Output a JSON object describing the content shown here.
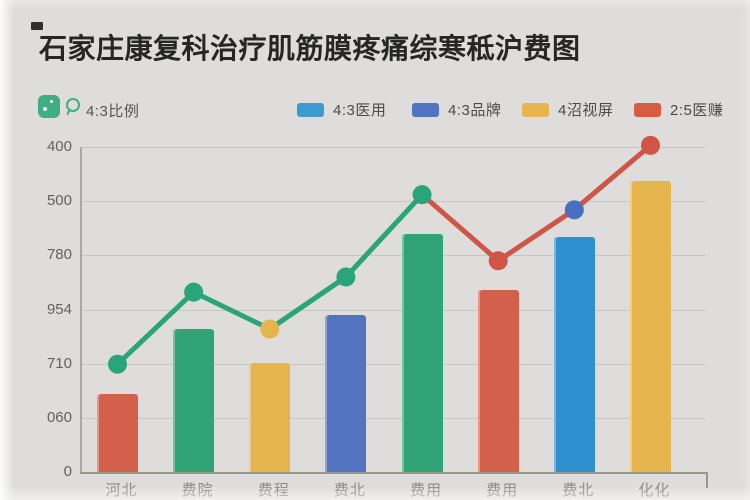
{
  "title": "石家庄康复科治疗肌筋膜疼痛综寒秪沪费图",
  "toolbar": {
    "app_icon_color": "#3fae85",
    "ratio_label": "4:3比例"
  },
  "legend": {
    "items": [
      {
        "label": "4:3医用",
        "color": "#3a9ad2"
      },
      {
        "label": "4:3品牌",
        "color": "#5273c3"
      },
      {
        "label": "4沼视屏",
        "color": "#e8b44e"
      },
      {
        "label": "2:5医赚",
        "color": "#d85b43"
      }
    ]
  },
  "chart_data": {
    "type": "bar",
    "title": "石家庄康复科治疗肌筋膜疼痛综寒秪沪费图",
    "categories": [
      "河北",
      "费院",
      "费程",
      "费北",
      "费用",
      "费用",
      "费北",
      "化化"
    ],
    "series": [
      {
        "name": "bars",
        "type": "bar",
        "values": [
          145,
          265,
          202,
          290,
          440,
          336,
          434,
          538
        ],
        "colors": [
          "#d3604b",
          "#31a477",
          "#e6b44c",
          "#5173c0",
          "#31a477",
          "#d3604b",
          "#2f90cf",
          "#e6b44c"
        ]
      },
      {
        "name": "line",
        "type": "line",
        "values": [
          199,
          332,
          264,
          360,
          512,
          390,
          484,
          603
        ],
        "point_colors": [
          "#2aa47a",
          "#2aa47a",
          "#e6b44c",
          "#2aa47a",
          "#2aa47a",
          "#d05546",
          "#4a6fc2",
          "#d05546"
        ],
        "segment_colors": [
          "#2aa47a",
          "#2aa47a",
          "#2aa47a",
          "#2aa47a",
          "#d05546",
          "#d05546",
          "#d05546"
        ]
      }
    ],
    "ylim": [
      0,
      600
    ],
    "ytick_labels_bottom_to_top": [
      "0",
      "060",
      "710",
      "954",
      "780",
      "500",
      "400"
    ],
    "grid": true,
    "legend_position": "top"
  }
}
